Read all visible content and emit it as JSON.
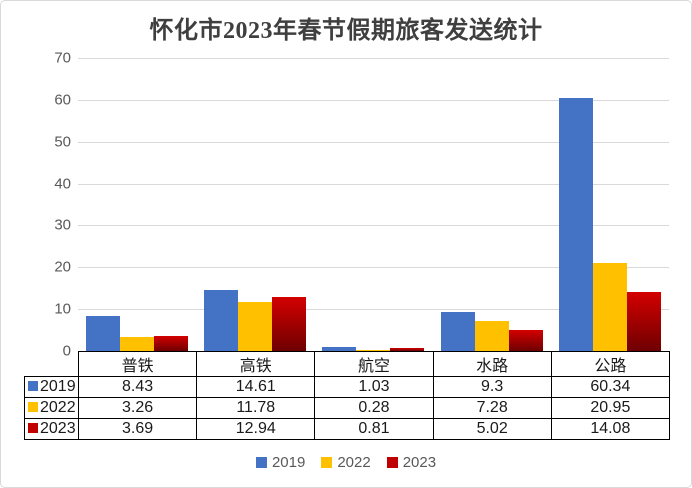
{
  "chart_data": {
    "type": "bar",
    "title": "怀化市2023年春节假期旅客发送统计",
    "categories": [
      "普铁",
      "高铁",
      "航空",
      "水路",
      "公路"
    ],
    "series": [
      {
        "name": "2019",
        "color": "#4472C4",
        "values": [
          8.43,
          14.61,
          1.03,
          9.3,
          60.34
        ]
      },
      {
        "name": "2022",
        "color": "#FFC000",
        "values": [
          3.26,
          11.78,
          0.28,
          7.28,
          20.95
        ]
      },
      {
        "name": "2023",
        "color": "#C00000",
        "gradient_top": "#D40000",
        "gradient_bottom": "#6E0000",
        "values": [
          3.69,
          12.94,
          0.81,
          5.02,
          14.08
        ]
      }
    ],
    "ylim": [
      0,
      70
    ],
    "yticks": [
      0,
      10,
      20,
      30,
      40,
      50,
      60,
      70
    ],
    "grid": true,
    "legend_position": "bottom",
    "has_data_table": true
  },
  "colors": {
    "gridline": "#D9D9D9",
    "axis_text": "#595959",
    "title_text": "#3F3F3F",
    "table_border": "#000000",
    "card_border": "#D9D9D9"
  }
}
